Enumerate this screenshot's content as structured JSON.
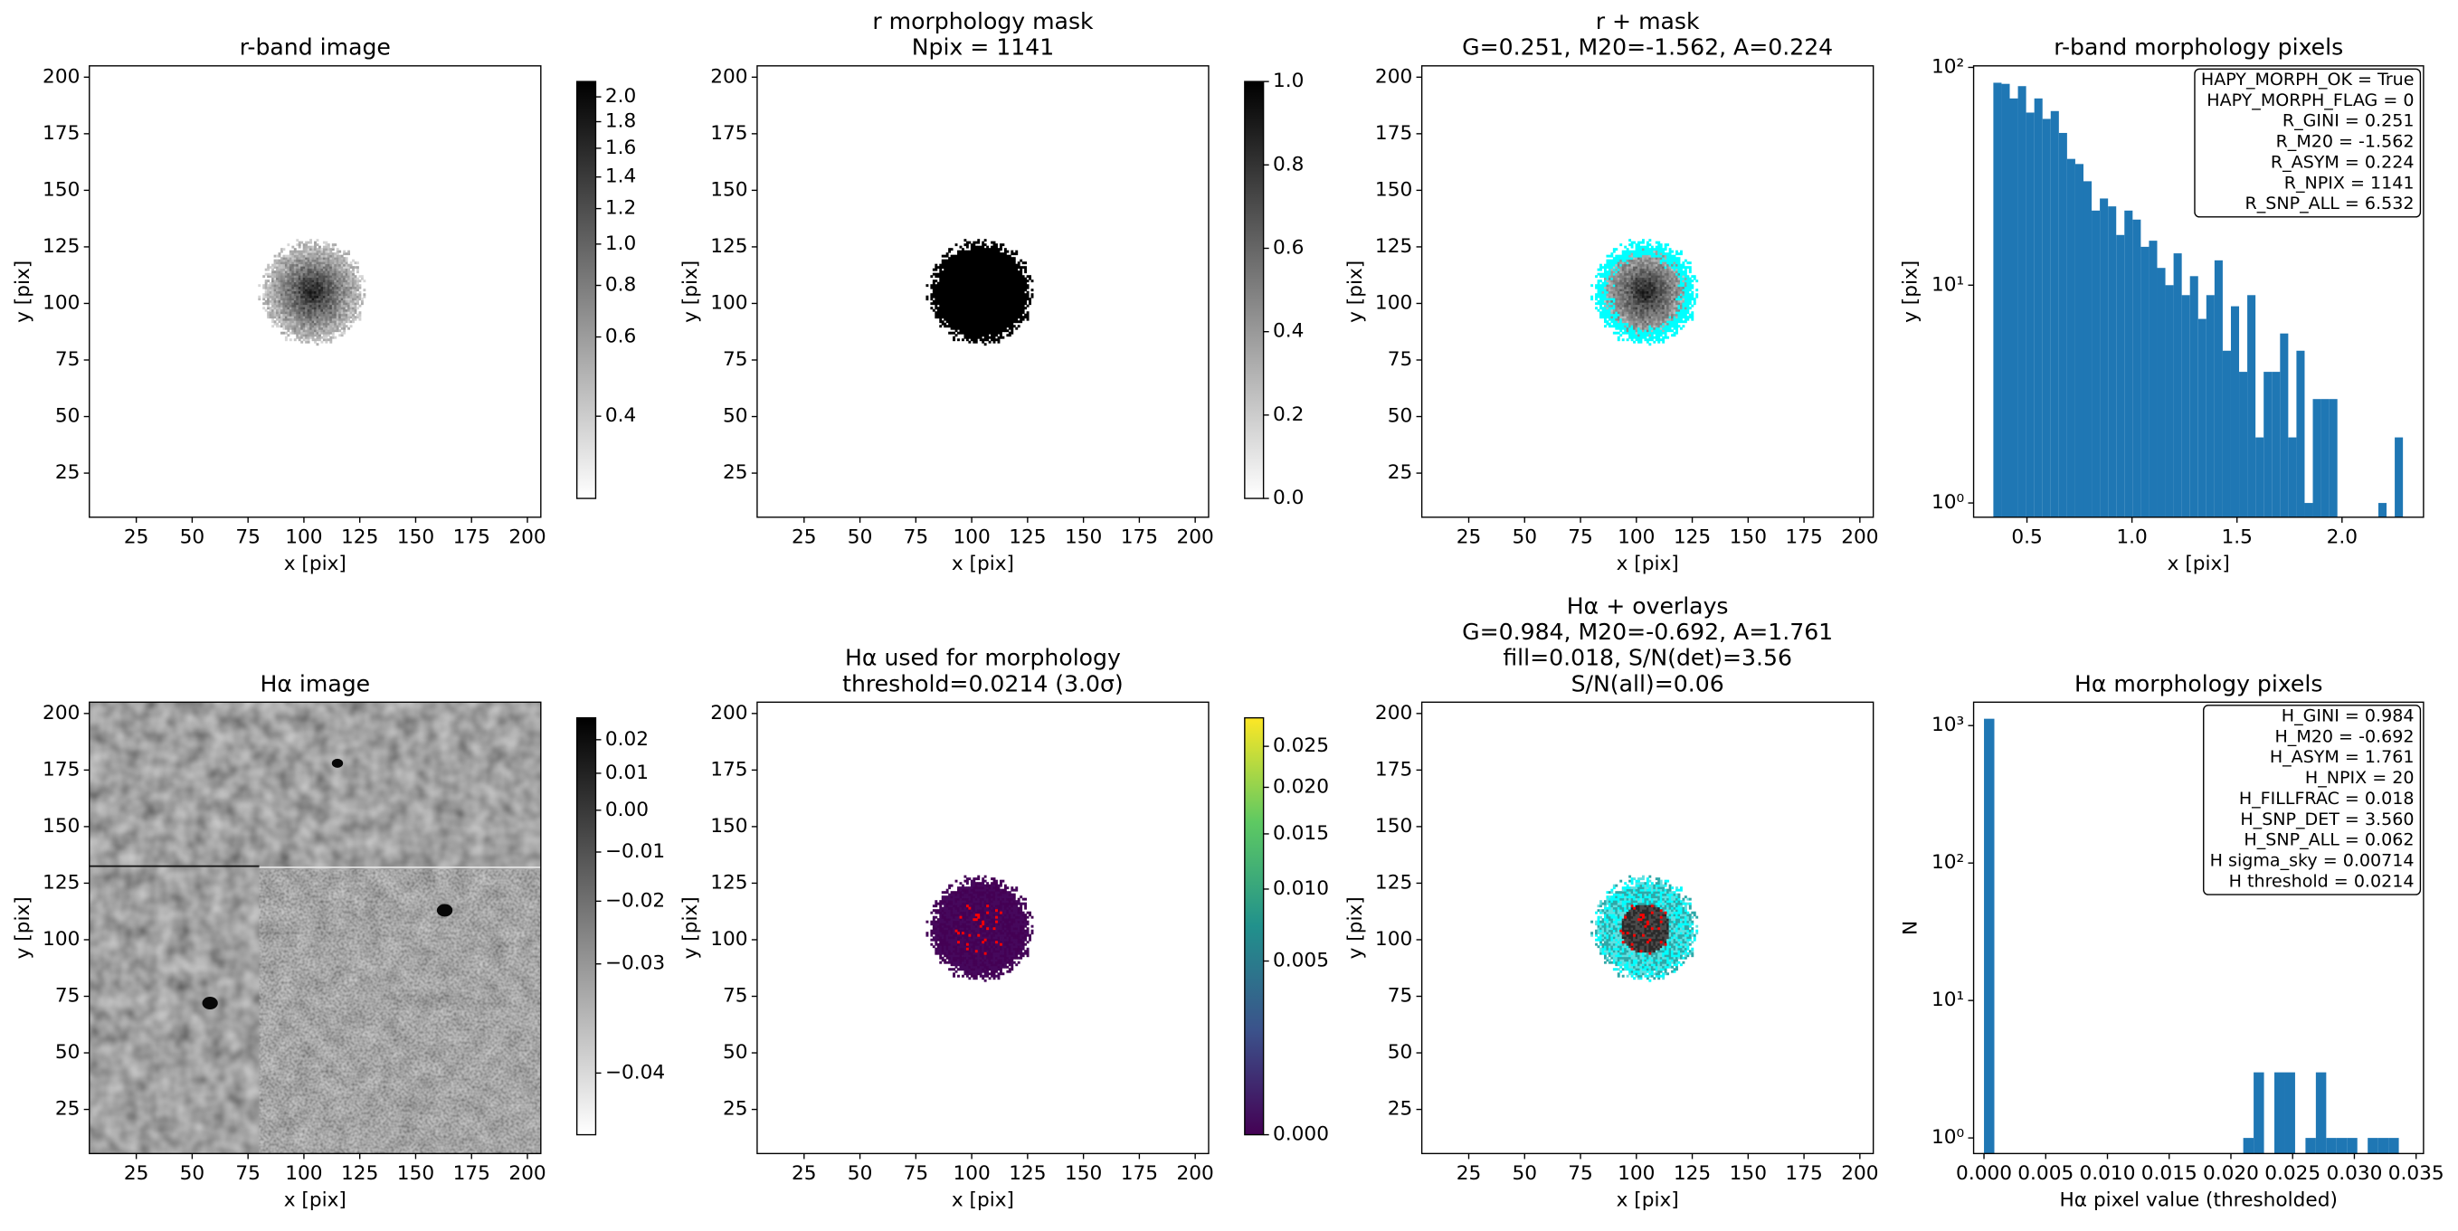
{
  "chart_data": [
    {
      "type": "image",
      "title": [
        "r-band image"
      ],
      "xlabel": "x [pix]",
      "ylabel": "y [pix]",
      "xlim": [
        4,
        206
      ],
      "ylim": [
        5.5,
        205
      ],
      "xticks": [
        25,
        50,
        75,
        100,
        125,
        150,
        175,
        200
      ],
      "yticks": [
        25,
        50,
        75,
        100,
        125,
        150,
        175,
        200
      ],
      "cmap": "gray_r",
      "colorbar": {
        "lim": [
          0.33,
          2.13
        ],
        "scale": "sqrt",
        "ticks": [
          0.4,
          0.6,
          0.8,
          {
            "value": 1,
            "label": "1.0"
          },
          1.2,
          1.4,
          1.6,
          1.8,
          {
            "value": 2,
            "label": "2.0"
          }
        ]
      }
    },
    {
      "type": "image",
      "title": [
        "r morphology mask",
        "Npix = 1141"
      ],
      "xlabel": "x [pix]",
      "ylabel": "y [pix]",
      "xlim": [
        4,
        206
      ],
      "ylim": [
        5.5,
        205
      ],
      "xticks": [
        25,
        50,
        75,
        100,
        125,
        150,
        175,
        200
      ],
      "yticks": [
        25,
        50,
        75,
        100,
        125,
        150,
        175,
        200
      ],
      "cmap": "gray_r",
      "colorbar": {
        "lim": [
          0,
          1
        ],
        "scale": "linear",
        "ticks": [
          {
            "value": 0,
            "label": "0.0"
          },
          0.2,
          0.4,
          0.6,
          0.8,
          {
            "value": 1,
            "label": "1.0"
          }
        ]
      }
    },
    {
      "type": "image",
      "title": [
        "r + mask",
        "G=0.251, M20=-1.562, A=0.224"
      ],
      "xlabel": "x [pix]",
      "ylabel": "y [pix]",
      "xlim": [
        4,
        206
      ],
      "ylim": [
        5.5,
        205
      ],
      "xticks": [
        25,
        50,
        75,
        100,
        125,
        150,
        175,
        200
      ],
      "yticks": [
        25,
        50,
        75,
        100,
        125,
        150,
        175,
        200
      ],
      "cmap": "gray_r",
      "overlay_color": "#00ffff"
    },
    {
      "type": "histogram",
      "title": [
        "r-band morphology pixels"
      ],
      "xlabel": "x [pix]",
      "ylabel": "y [pix]",
      "xlim": [
        0.246,
        2.388
      ],
      "ylim": [
        0.86,
        101.6
      ],
      "log_y": true,
      "color": "#1f77b4",
      "xticks": [
        0.5,
        {
          "value": 1,
          "label": "1.0"
        },
        1.5,
        {
          "value": 2,
          "label": "2.0"
        }
      ],
      "yticks": [
        {
          "value": 1,
          "label": "10⁰"
        },
        {
          "value": 10,
          "label": "10¹"
        },
        {
          "value": 100,
          "label": "10²"
        }
      ],
      "bins": [
        0.34,
        0.379,
        0.418,
        0.457,
        0.496,
        0.535,
        0.574,
        0.613,
        0.652,
        0.691,
        0.73,
        0.769,
        0.808,
        0.847,
        0.886,
        0.925,
        0.964,
        1.003,
        1.042,
        1.081,
        1.12,
        1.159,
        1.198,
        1.237,
        1.276,
        1.315,
        1.354,
        1.393,
        1.432,
        1.471,
        1.51,
        1.549,
        1.588,
        1.627,
        1.666,
        1.705,
        1.744,
        1.783,
        1.822,
        1.861,
        1.9,
        1.939,
        1.978,
        2.017,
        2.056,
        2.095,
        2.134,
        2.173,
        2.212,
        2.251,
        2.29
      ],
      "counts": [
        85,
        84,
        72,
        82,
        62,
        72,
        58,
        63,
        50,
        38,
        36,
        30,
        22,
        25,
        23,
        17,
        22,
        20,
        15,
        16,
        12,
        10,
        14,
        9,
        11,
        7,
        9,
        13,
        5,
        8,
        4,
        9,
        2,
        4,
        4,
        6,
        2,
        5,
        1,
        3,
        3,
        3,
        0,
        0,
        0,
        0,
        0,
        1,
        0,
        2
      ],
      "info": [
        "HAPY_MORPH_OK = True",
        "HAPY_MORPH_FLAG = 0",
        "R_GINI = 0.251",
        "R_M20 = -1.562",
        "R_ASYM = 0.224",
        "R_NPIX = 1141",
        "R_SNP_ALL = 6.532"
      ]
    },
    {
      "type": "image",
      "title": [
        "Hα image"
      ],
      "xlabel": "x [pix]",
      "ylabel": "y [pix]",
      "xlim": [
        4,
        206
      ],
      "ylim": [
        5.5,
        205
      ],
      "xticks": [
        25,
        50,
        75,
        100,
        125,
        150,
        175,
        200
      ],
      "yticks": [
        25,
        50,
        75,
        100,
        125,
        150,
        175,
        200
      ],
      "cmap": "gray_r",
      "colorbar": {
        "lim": [
          -0.0415,
          0.027
        ],
        "scale": "sqrt",
        "ticks": [
          {
            "value": 0.02,
            "label": "0.02"
          },
          {
            "value": 0.01,
            "label": "0.01"
          },
          {
            "value": 0,
            "label": "0.00"
          },
          {
            "value": -0.01,
            "label": "−0.01"
          },
          {
            "value": -0.02,
            "label": "−0.02"
          },
          {
            "value": -0.03,
            "label": "−0.03"
          },
          {
            "value": -0.04,
            "label": "−0.04"
          }
        ]
      }
    },
    {
      "type": "image",
      "title": [
        "Hα used for morphology",
        "threshold=0.0214 (3.0σ)"
      ],
      "xlabel": "x [pix]",
      "ylabel": "y [pix]",
      "xlim": [
        4,
        206
      ],
      "ylim": [
        5.5,
        205
      ],
      "xticks": [
        25,
        50,
        75,
        100,
        125,
        150,
        175,
        200
      ],
      "yticks": [
        25,
        50,
        75,
        100,
        125,
        150,
        175,
        200
      ],
      "cmap": "viridis",
      "marker_color": "#ff0000",
      "colorbar": {
        "lim": [
          0,
          0.0288
        ],
        "scale": "sqrt",
        "ticks": [
          {
            "value": 0,
            "label": "0.000"
          },
          0.005,
          {
            "value": 0.01,
            "label": "0.010"
          },
          0.015,
          {
            "value": 0.02,
            "label": "0.020"
          },
          0.025
        ]
      }
    },
    {
      "type": "image",
      "title": [
        "Hα + overlays",
        "G=0.984, M20=-0.692, A=1.761",
        "fill=0.018, S/N(det)=3.56",
        "S/N(all)=0.06"
      ],
      "xlabel": "x [pix]",
      "ylabel": "y [pix]",
      "xlim": [
        4,
        206
      ],
      "ylim": [
        5.5,
        205
      ],
      "xticks": [
        25,
        50,
        75,
        100,
        125,
        150,
        175,
        200
      ],
      "yticks": [
        25,
        50,
        75,
        100,
        125,
        150,
        175,
        200
      ],
      "cmap": "gray_r",
      "overlay_color": "#00ffff",
      "marker_color": "#ff0000"
    },
    {
      "type": "histogram",
      "title": [
        "Hα morphology pixels"
      ],
      "xlabel": "Hα pixel value (thresholded)",
      "ylabel": "N",
      "xlim": [
        -0.00084,
        0.0356
      ],
      "ylim": [
        0.77,
        1480
      ],
      "log_y": true,
      "color": "#1f77b4",
      "xticks": [
        {
          "value": 0,
          "label": "0.000"
        },
        0.005,
        {
          "value": 0.01,
          "label": "0.010"
        },
        0.015,
        {
          "value": 0.02,
          "label": "0.020"
        },
        0.025,
        {
          "value": 0.03,
          "label": "0.030"
        },
        0.035
      ],
      "yticks": [
        {
          "value": 1,
          "label": "10⁰"
        },
        {
          "value": 10,
          "label": "10¹"
        },
        {
          "value": 100,
          "label": "10²"
        },
        {
          "value": 1000,
          "label": "10³"
        }
      ],
      "bins": [
        0,
        0.00084,
        0.00168,
        0.00252,
        0.00336,
        0.0042,
        0.00504,
        0.00588,
        0.00672,
        0.00756,
        0.0084,
        0.00924,
        0.01008,
        0.01092,
        0.01176,
        0.0126,
        0.01344,
        0.01428,
        0.01512,
        0.01596,
        0.0168,
        0.01764,
        0.01848,
        0.01932,
        0.02016,
        0.021,
        0.02184,
        0.02268,
        0.02352,
        0.02436,
        0.0252,
        0.02604,
        0.02688,
        0.02772,
        0.02856,
        0.0294,
        0.03024,
        0.03108,
        0.03192,
        0.03276,
        0.0336
      ],
      "counts": [
        1121,
        0,
        0,
        0,
        0,
        0,
        0,
        0,
        0,
        0,
        0,
        0,
        0,
        0,
        0,
        0,
        0,
        0,
        0,
        0,
        0,
        0,
        0,
        0,
        0,
        1,
        3,
        0,
        3,
        3,
        0,
        1,
        3,
        1,
        1,
        1,
        0,
        1,
        1,
        1
      ],
      "info": [
        "H_GINI = 0.984",
        "H_M20 = -0.692",
        "H_ASYM = 1.761",
        "H_NPIX = 20",
        "H_FILLFRAC = 0.018",
        "H_SNP_DET = 3.560",
        "H_SNP_ALL = 0.062",
        "H sigma_sky = 0.00714",
        "H threshold = 0.0214"
      ]
    }
  ]
}
